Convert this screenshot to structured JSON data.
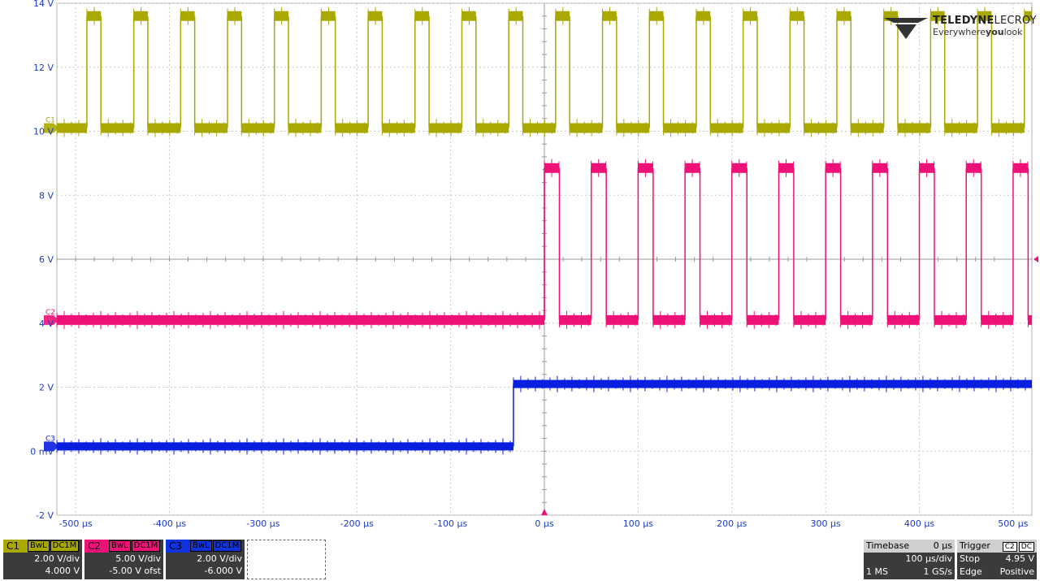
{
  "chart_data": {
    "type": "line",
    "x_unit": "µs",
    "xlim": [
      -520,
      520
    ],
    "ylim": [
      -2,
      14
    ],
    "x_ticks": [
      -500,
      -400,
      -300,
      -200,
      -100,
      0,
      100,
      200,
      300,
      400,
      500
    ],
    "x_tick_labels": [
      "-500 µs",
      "-400 µs",
      "-300 µs",
      "-200 µs",
      "-100 µs",
      "0 µs",
      "100 µs",
      "200 µs",
      "300 µs",
      "400 µs",
      "500 µs"
    ],
    "y_ticks": [
      14,
      12,
      10,
      8,
      6,
      4,
      2,
      0,
      -2
    ],
    "y_tick_labels": [
      "14 V",
      "12 V",
      "10 V",
      "8 V",
      "6 V",
      "4 V",
      "2 V",
      "0 mV",
      "-2 V"
    ],
    "grid": true,
    "series": [
      {
        "name": "C1",
        "color": "#a8a800",
        "signal": "square",
        "low_v": 10.1,
        "high_v": 13.6,
        "period_us": 50,
        "high_duration_us": 15,
        "first_rising_edge_us": -488
      },
      {
        "name": "C2",
        "color": "#ee1177",
        "signal": "idle-then-square",
        "start_us": 0,
        "idle_v": 4.1,
        "low_v": 4.1,
        "high_v": 8.85,
        "period_us": 50,
        "high_duration_us": 16
      },
      {
        "name": "C3",
        "color": "#0a1ee0",
        "signal": "step",
        "before_v": 0.15,
        "after_v": 2.1,
        "step_us": -33
      }
    ]
  },
  "channels": [
    {
      "label": "C1",
      "bw": "BwL",
      "coupling": "DC1M",
      "scale": "2.00 V/div",
      "offset": "4.000 V",
      "color": "#a8a800"
    },
    {
      "label": "C2",
      "bw": "BwL",
      "coupling": "DC1M",
      "scale": "5.00 V/div",
      "offset": "-5.00 V ofst",
      "color": "#ee1177"
    },
    {
      "label": "C3",
      "bw": "BwL",
      "coupling": "DC1M",
      "scale": "2.00 V/div",
      "offset": "-6.000 V",
      "color": "#1133dd"
    }
  ],
  "timebase": {
    "title": "Timebase",
    "delay": "0 µs",
    "scale": "100 µs/div",
    "memory": "1 MS",
    "rate": "1 GS/s"
  },
  "trigger": {
    "title": "Trigger",
    "source": "C2",
    "coupling": "DC",
    "mode": "Stop",
    "level": "4.95 V",
    "type": "Edge",
    "slope": "Positive"
  },
  "brand": {
    "name_bold": "TELEDYNE",
    "name_thin": "LECROY",
    "tagline_a": "Everywhere",
    "tagline_b": "you",
    "tagline_c": "look"
  }
}
